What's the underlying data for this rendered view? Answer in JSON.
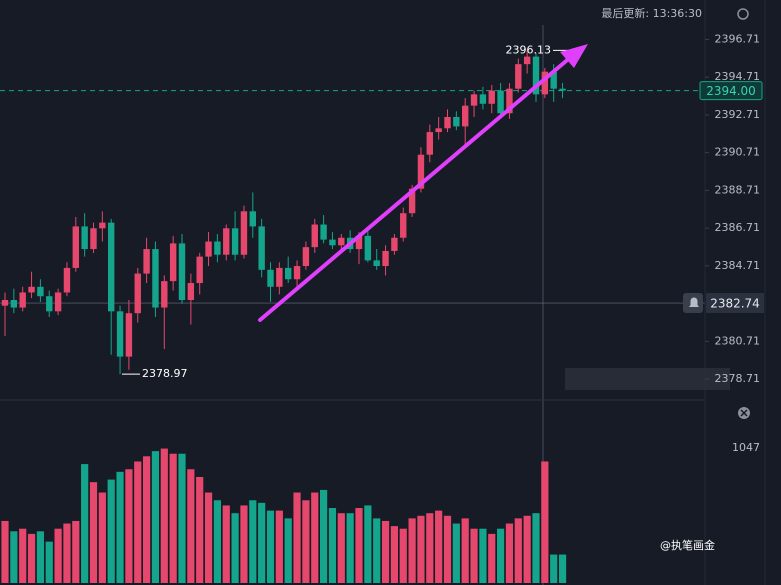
{
  "header": "最后更新: 13:36:30",
  "watermark": "@执笔画金",
  "chart_data": [
    {
      "type": "candlestick",
      "up_color": "#e5486c",
      "down_color": "#14a58c",
      "open": [
        2382.6,
        2382.9,
        2382.5,
        2383.3,
        2383.6,
        2383.1,
        2382.3,
        2383.3,
        2384.6,
        2386.8,
        2385.6,
        2386.7,
        2387.0,
        2382.3,
        2379.9,
        2382.2,
        2384.3,
        2385.6,
        2382.5,
        2383.9,
        2385.9,
        2382.9,
        2383.8,
        2385.2,
        2386.0,
        2385.3,
        2386.7,
        2385.3,
        2387.6,
        2386.8,
        2384.5,
        2383.6,
        2384.6,
        2384.0,
        2384.7,
        2385.7,
        2386.9,
        2386.1,
        2385.8,
        2386.2,
        2385.6,
        2386.3,
        2385.0,
        2384.7,
        2385.5,
        2386.2,
        2387.5,
        2388.8,
        2390.6,
        2391.8,
        2392.0,
        2392.6,
        2392.1,
        2393.2,
        2393.8,
        2393.3,
        2394.0,
        2392.8,
        2394.1,
        2395.4,
        2395.8,
        2393.8,
        2395.0,
        2394.1
      ],
      "high": [
        2383.3,
        2383.5,
        2383.6,
        2384.4,
        2384.0,
        2383.4,
        2383.5,
        2384.9,
        2387.3,
        2387.5,
        2387.0,
        2387.6,
        2387.2,
        2382.6,
        2382.9,
        2384.6,
        2386.2,
        2386.0,
        2384.2,
        2386.3,
        2386.4,
        2384.3,
        2385.4,
        2386.5,
        2386.4,
        2386.9,
        2387.6,
        2387.9,
        2388.6,
        2387.2,
        2384.9,
        2384.9,
        2385.2,
        2385.0,
        2386.0,
        2387.2,
        2387.4,
        2386.5,
        2386.4,
        2386.6,
        2386.5,
        2386.6,
        2385.6,
        2385.8,
        2386.4,
        2387.8,
        2389.0,
        2391.0,
        2392.2,
        2392.6,
        2393.0,
        2392.9,
        2393.6,
        2394.0,
        2394.2,
        2394.3,
        2394.4,
        2394.4,
        2395.7,
        2396.13,
        2396.0,
        2395.2,
        2395.4,
        2394.4
      ],
      "low": [
        2381.0,
        2382.2,
        2382.3,
        2383.0,
        2382.8,
        2382.0,
        2382.1,
        2383.1,
        2384.4,
        2385.2,
        2385.4,
        2386.0,
        2380.0,
        2378.97,
        2379.2,
        2381.7,
        2383.8,
        2382.0,
        2380.3,
        2383.4,
        2382.7,
        2381.6,
        2383.2,
        2384.7,
        2384.9,
        2385.0,
        2385.0,
        2385.1,
        2386.2,
        2384.1,
        2382.8,
        2383.2,
        2383.8,
        2383.6,
        2384.5,
        2385.4,
        2385.9,
        2385.6,
        2385.5,
        2385.4,
        2384.8,
        2384.9,
        2384.5,
        2384.2,
        2385.3,
        2386.0,
        2387.3,
        2388.6,
        2390.2,
        2391.4,
        2391.8,
        2391.9,
        2391.0,
        2392.6,
        2393.0,
        2392.8,
        2392.6,
        2392.5,
        2393.9,
        2394.9,
        2393.4,
        2393.6,
        2393.4,
        2393.6
      ],
      "close": [
        2382.9,
        2382.5,
        2383.3,
        2383.6,
        2383.1,
        2382.3,
        2383.3,
        2384.6,
        2386.8,
        2385.6,
        2386.7,
        2387.0,
        2382.3,
        2379.9,
        2382.2,
        2384.3,
        2385.6,
        2382.5,
        2383.9,
        2385.9,
        2382.9,
        2383.8,
        2385.2,
        2386.0,
        2385.3,
        2386.7,
        2385.3,
        2387.6,
        2386.8,
        2384.5,
        2383.6,
        2384.6,
        2384.0,
        2384.7,
        2385.7,
        2386.9,
        2386.1,
        2385.8,
        2386.2,
        2385.6,
        2386.3,
        2385.0,
        2384.7,
        2385.5,
        2386.2,
        2387.5,
        2388.8,
        2390.6,
        2391.8,
        2392.0,
        2392.6,
        2392.1,
        2393.2,
        2393.8,
        2393.3,
        2394.0,
        2392.8,
        2394.1,
        2395.4,
        2395.8,
        2393.8,
        2395.0,
        2394.1,
        2394.0
      ],
      "ylim": [
        2377.6,
        2398.8
      ],
      "yticks": [
        2396.71,
        2394.71,
        2392.71,
        2390.71,
        2388.71,
        2386.71,
        2384.71,
        2380.71,
        2378.71
      ],
      "annotations": [
        {
          "text": "2396.13",
          "value": 2396.13
        },
        {
          "text": "2378.97",
          "value": 2378.97
        }
      ],
      "current_price": {
        "value": 2394,
        "label": "2394.00"
      },
      "crosshair_price": 2382.74
    },
    {
      "type": "bar",
      "title": "1047",
      "values": [
        480,
        400,
        420,
        380,
        400,
        320,
        420,
        460,
        480,
        920,
        780,
        700,
        800,
        860,
        880,
        940,
        980,
        1020,
        1040,
        1000,
        1000,
        880,
        820,
        700,
        640,
        600,
        540,
        600,
        640,
        620,
        560,
        560,
        500,
        700,
        640,
        700,
        720,
        580,
        540,
        540,
        580,
        600,
        500,
        480,
        440,
        420,
        500,
        520,
        540,
        560,
        520,
        460,
        500,
        420,
        420,
        380,
        420,
        460,
        500,
        520,
        540,
        940,
        220,
        220
      ],
      "ylim": [
        0,
        1230
      ]
    }
  ]
}
